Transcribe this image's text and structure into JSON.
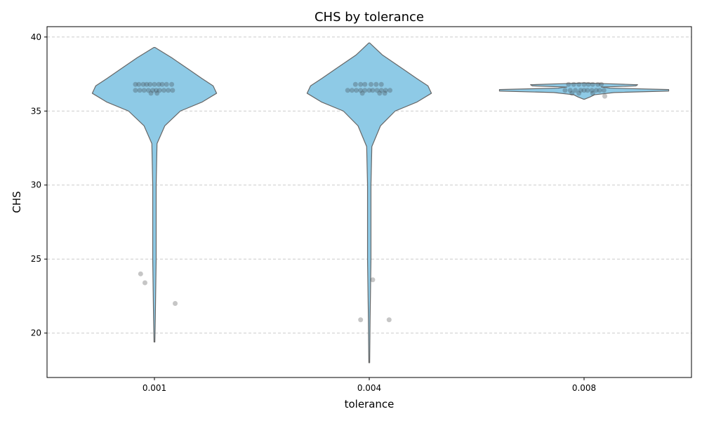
{
  "chart_data": {
    "type": "violin",
    "title": "CHS by tolerance",
    "xlabel": "tolerance",
    "ylabel": "CHS",
    "categories": [
      "0.001",
      "0.004",
      "0.008"
    ],
    "ylim": [
      17,
      40.7
    ],
    "yticks": [
      20,
      25,
      30,
      35,
      40
    ],
    "grid": "y-dashed",
    "colors": {
      "violin_fill": "#8ecae6",
      "violin_edge": "#666666",
      "point": "#333333",
      "grid": "#cccccc"
    },
    "series": [
      {
        "category": "0.001",
        "violin_range": [
          19.4,
          39.3
        ],
        "density_profile": [
          [
            19.4,
            0.0
          ],
          [
            21.0,
            0.01
          ],
          [
            25.0,
            0.02
          ],
          [
            30.0,
            0.02
          ],
          [
            32.8,
            0.03
          ],
          [
            34.0,
            0.12
          ],
          [
            35.0,
            0.3
          ],
          [
            35.6,
            0.55
          ],
          [
            36.2,
            0.72
          ],
          [
            36.7,
            0.68
          ],
          [
            37.2,
            0.55
          ],
          [
            37.8,
            0.4
          ],
          [
            38.6,
            0.2
          ],
          [
            39.3,
            0.0
          ]
        ],
        "points": [
          [
            -0.22,
            36.8
          ],
          [
            -0.18,
            36.8
          ],
          [
            -0.13,
            36.8
          ],
          [
            -0.09,
            36.8
          ],
          [
            -0.05,
            36.8
          ],
          [
            0.0,
            36.8
          ],
          [
            0.05,
            36.8
          ],
          [
            0.09,
            36.8
          ],
          [
            0.14,
            36.8
          ],
          [
            0.2,
            36.8
          ],
          [
            -0.22,
            36.4
          ],
          [
            -0.17,
            36.4
          ],
          [
            -0.12,
            36.4
          ],
          [
            -0.07,
            36.4
          ],
          [
            -0.02,
            36.4
          ],
          [
            0.02,
            36.4
          ],
          [
            0.06,
            36.4
          ],
          [
            0.11,
            36.4
          ],
          [
            0.16,
            36.4
          ],
          [
            0.21,
            36.4
          ],
          [
            -0.04,
            36.2
          ],
          [
            0.03,
            36.2
          ],
          [
            -0.16,
            24.0
          ],
          [
            -0.11,
            23.4
          ],
          [
            0.24,
            22.0
          ]
        ]
      },
      {
        "category": "0.004",
        "violin_range": [
          18.0,
          39.6
        ],
        "density_profile": [
          [
            18.0,
            0.0
          ],
          [
            21.0,
            0.01
          ],
          [
            25.0,
            0.02
          ],
          [
            30.0,
            0.02
          ],
          [
            32.6,
            0.03
          ],
          [
            34.0,
            0.13
          ],
          [
            35.0,
            0.3
          ],
          [
            35.6,
            0.55
          ],
          [
            36.2,
            0.72
          ],
          [
            36.7,
            0.68
          ],
          [
            37.2,
            0.55
          ],
          [
            37.8,
            0.4
          ],
          [
            38.8,
            0.15
          ],
          [
            39.6,
            0.0
          ]
        ],
        "points": [
          [
            -0.16,
            36.8
          ],
          [
            -0.1,
            36.8
          ],
          [
            -0.05,
            36.8
          ],
          [
            0.02,
            36.8
          ],
          [
            0.08,
            36.8
          ],
          [
            0.14,
            36.8
          ],
          [
            -0.25,
            36.4
          ],
          [
            -0.2,
            36.4
          ],
          [
            -0.15,
            36.4
          ],
          [
            -0.1,
            36.4
          ],
          [
            -0.05,
            36.4
          ],
          [
            0.0,
            36.4
          ],
          [
            0.04,
            36.4
          ],
          [
            0.09,
            36.4
          ],
          [
            0.14,
            36.4
          ],
          [
            0.19,
            36.4
          ],
          [
            0.24,
            36.4
          ],
          [
            -0.08,
            36.2
          ],
          [
            0.12,
            36.2
          ],
          [
            0.18,
            36.2
          ],
          [
            0.04,
            23.6
          ],
          [
            -0.1,
            20.9
          ],
          [
            0.23,
            20.9
          ]
        ]
      },
      {
        "category": "0.008",
        "violin_range": [
          35.8,
          36.9
        ],
        "density_profile": [
          [
            35.8,
            0.0
          ],
          [
            35.95,
            0.07
          ],
          [
            36.1,
            0.12
          ],
          [
            36.25,
            0.35
          ],
          [
            36.35,
            0.98
          ],
          [
            36.45,
            0.98
          ],
          [
            36.55,
            0.3
          ],
          [
            36.62,
            0.2
          ],
          [
            36.7,
            0.6
          ],
          [
            36.78,
            0.62
          ],
          [
            36.84,
            0.3
          ],
          [
            36.9,
            0.0
          ]
        ],
        "points": [
          [
            -0.18,
            36.8
          ],
          [
            -0.12,
            36.8
          ],
          [
            -0.06,
            36.8
          ],
          [
            0.0,
            36.8
          ],
          [
            0.05,
            36.8
          ],
          [
            0.1,
            36.8
          ],
          [
            0.16,
            36.8
          ],
          [
            0.2,
            36.8
          ],
          [
            -0.22,
            36.4
          ],
          [
            -0.16,
            36.4
          ],
          [
            -0.1,
            36.4
          ],
          [
            -0.04,
            36.4
          ],
          [
            0.0,
            36.4
          ],
          [
            0.04,
            36.4
          ],
          [
            0.09,
            36.4
          ],
          [
            0.14,
            36.4
          ],
          [
            0.18,
            36.4
          ],
          [
            0.23,
            36.4
          ],
          [
            -0.14,
            36.2
          ],
          [
            -0.06,
            36.2
          ],
          [
            0.1,
            36.2
          ],
          [
            0.24,
            36.0
          ]
        ]
      }
    ]
  }
}
